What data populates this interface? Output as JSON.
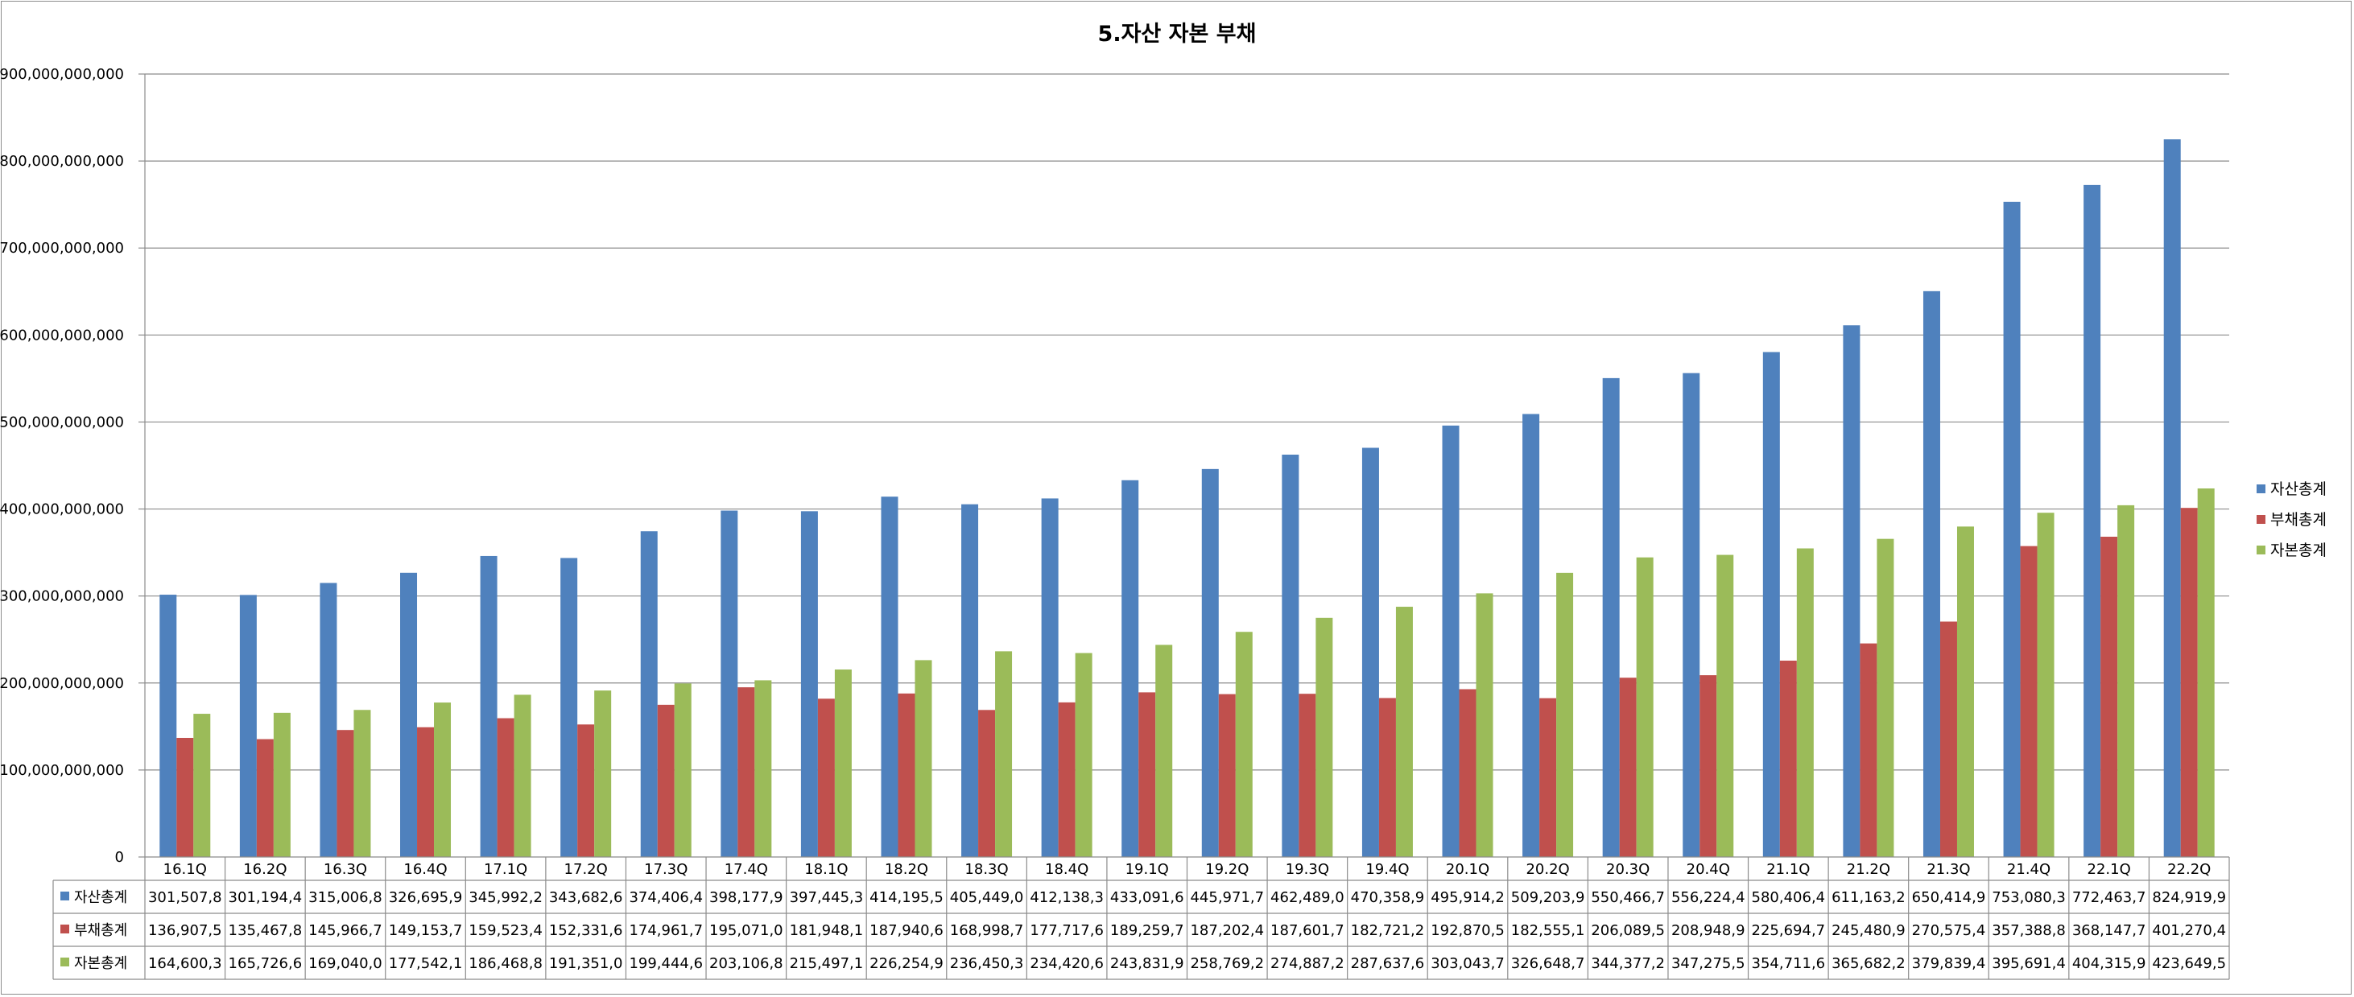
{
  "chart_data": {
    "type": "bar",
    "title": "5.자산 자본 부채",
    "ylim": [
      0,
      900000000000
    ],
    "yticks": [
      0,
      100000000000,
      200000000000,
      300000000000,
      400000000000,
      500000000000,
      600000000000,
      700000000000,
      800000000000,
      900000000000
    ],
    "ytick_labels": [
      "0",
      "100,000,000,000",
      "200,000,000,000",
      "300,000,000,000",
      "400,000,000,000",
      "500,000,000,000",
      "600,000,000,000",
      "700,000,000,000",
      "800,000,000,000",
      "900,000,000,000"
    ],
    "grid": "horizontal",
    "legend_position": "right",
    "categories": [
      "16.1Q",
      "16.2Q",
      "16.3Q",
      "16.4Q",
      "17.1Q",
      "17.2Q",
      "17.3Q",
      "17.4Q",
      "18.1Q",
      "18.2Q",
      "18.3Q",
      "18.4Q",
      "19.1Q",
      "19.2Q",
      "19.3Q",
      "19.4Q",
      "20.1Q",
      "20.2Q",
      "20.3Q",
      "20.4Q",
      "21.1Q",
      "21.2Q",
      "21.3Q",
      "21.4Q",
      "22.1Q",
      "22.2Q"
    ],
    "series": [
      {
        "name": "자산총계",
        "color": "#4f81bd",
        "values": [
          301507800000,
          301194400000,
          315006800000,
          326695900000,
          345992200000,
          343682600000,
          374406400000,
          398177900000,
          397445300000,
          414195500000,
          405449000000,
          412138300000,
          433091600000,
          445971700000,
          462489000000,
          470358900000,
          495914200000,
          509203900000,
          550466700000,
          556224400000,
          580406400000,
          611163200000,
          650414900000,
          753080300000,
          772463700000,
          824919900000
        ],
        "table_labels": [
          "301,507,8",
          "301,194,4",
          "315,006,8",
          "326,695,9",
          "345,992,2",
          "343,682,6",
          "374,406,4",
          "398,177,9",
          "397,445,3",
          "414,195,5",
          "405,449,0",
          "412,138,3",
          "433,091,6",
          "445,971,7",
          "462,489,0",
          "470,358,9",
          "495,914,2",
          "509,203,9",
          "550,466,7",
          "556,224,4",
          "580,406,4",
          "611,163,2",
          "650,414,9",
          "753,080,3",
          "772,463,7",
          "824,919,9"
        ]
      },
      {
        "name": "부채총계",
        "color": "#c0504d",
        "values": [
          136907500000,
          135467800000,
          145966700000,
          149153700000,
          159523400000,
          152331600000,
          174961700000,
          195071000000,
          181948100000,
          187940600000,
          168998700000,
          177717600000,
          189259700000,
          187202400000,
          187601700000,
          182721200000,
          192870500000,
          182555100000,
          206089500000,
          208948900000,
          225694700000,
          245480900000,
          270575400000,
          357388800000,
          368147700000,
          401270400000
        ],
        "table_labels": [
          "136,907,5",
          "135,467,8",
          "145,966,7",
          "149,153,7",
          "159,523,4",
          "152,331,6",
          "174,961,7",
          "195,071,0",
          "181,948,1",
          "187,940,6",
          "168,998,7",
          "177,717,6",
          "189,259,7",
          "187,202,4",
          "187,601,7",
          "182,721,2",
          "192,870,5",
          "182,555,1",
          "206,089,5",
          "208,948,9",
          "225,694,7",
          "245,480,9",
          "270,575,4",
          "357,388,8",
          "368,147,7",
          "401,270,4"
        ]
      },
      {
        "name": "자본총계",
        "color": "#9bbb59",
        "values": [
          164600300000,
          165726600000,
          169040000000,
          177542100000,
          186468800000,
          191351000000,
          199444600000,
          203106800000,
          215497100000,
          226254900000,
          236450300000,
          234420600000,
          243831900000,
          258769200000,
          274887200000,
          287637600000,
          303043700000,
          326648700000,
          344377200000,
          347275500000,
          354711600000,
          365682200000,
          379839400000,
          395691400000,
          404315900000,
          423649500000
        ],
        "table_labels": [
          "164,600,3",
          "165,726,6",
          "169,040,0",
          "177,542,1",
          "186,468,8",
          "191,351,0",
          "199,444,6",
          "203,106,8",
          "215,497,1",
          "226,254,9",
          "236,450,3",
          "234,420,6",
          "243,831,9",
          "258,769,2",
          "274,887,2",
          "287,637,6",
          "303,043,7",
          "326,648,7",
          "344,377,2",
          "347,275,5",
          "354,711,6",
          "365,682,2",
          "379,839,4",
          "395,691,4",
          "404,315,9",
          "423,649,5"
        ]
      }
    ]
  }
}
